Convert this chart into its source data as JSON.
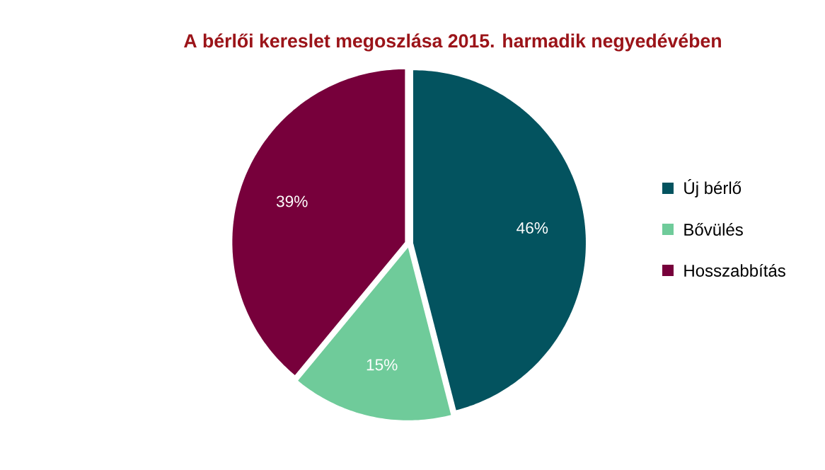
{
  "chart_data": {
    "type": "pie",
    "title": "A bérlői kereslet megoszlása 2015. harmadik negyedévében",
    "categories": [
      "Új bérlő",
      "Bővülés",
      "Hosszabbítás"
    ],
    "values": [
      46,
      15,
      39
    ],
    "colors": [
      "#03535f",
      "#6fcb9a",
      "#77003b"
    ],
    "value_labels": [
      "46%",
      "15%",
      "39%"
    ],
    "legend": "right"
  }
}
